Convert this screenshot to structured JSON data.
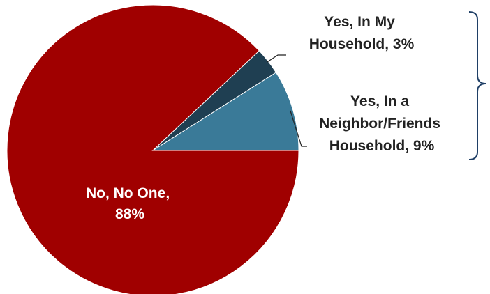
{
  "chart_data": {
    "type": "pie",
    "title": "",
    "slices": [
      {
        "name": "No, No One",
        "value": 88,
        "color": "#a00000",
        "label_lines": [
          "No, No One,",
          "88%"
        ]
      },
      {
        "name": "Yes, In a Neighbor/Friends Household",
        "value": 9,
        "color": "#3a7a98",
        "label_lines": [
          "Yes, In a",
          "Neighbor/Friends",
          "Household, 9%"
        ]
      },
      {
        "name": "Yes, In My Household",
        "value": 3,
        "color": "#1f3f52",
        "label_lines": [
          "Yes, In My",
          "Household, 3%"
        ]
      }
    ],
    "bracket_color": "#1f3f66",
    "legend": "none",
    "grid": false
  }
}
